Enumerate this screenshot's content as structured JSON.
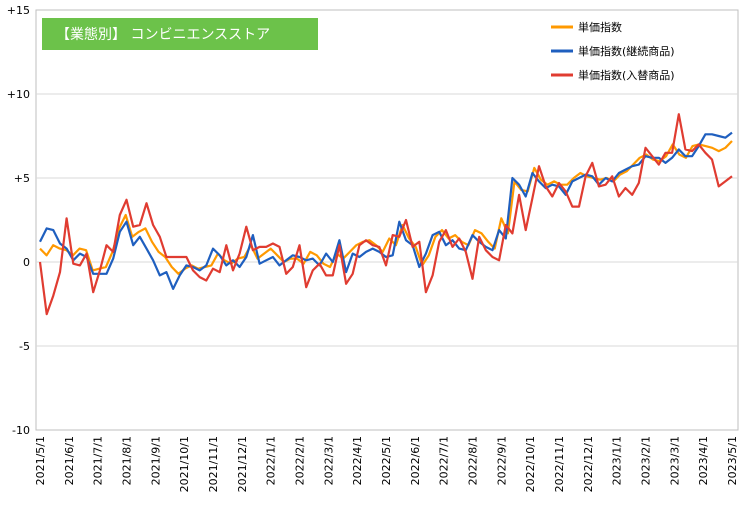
{
  "chart_data": {
    "type": "line",
    "title": "【業態別】 コンビニエンスストア",
    "title_bg_color": "#6cc24a",
    "ylim": [
      -10,
      15
    ],
    "yticks": [
      {
        "value": 15,
        "label": "+15"
      },
      {
        "value": 10,
        "label": "+10"
      },
      {
        "value": 5,
        "label": "+5"
      },
      {
        "value": 0,
        "label": "0"
      },
      {
        "value": -5,
        "label": "-5"
      },
      {
        "value": -10,
        "label": "-10"
      }
    ],
    "x_tick_labels": [
      "2021/5/1",
      "2021/6/1",
      "2021/7/1",
      "2021/8/1",
      "2021/9/1",
      "2021/10/1",
      "2021/11/1",
      "2021/12/1",
      "2022/1/1",
      "2022/2/1",
      "2022/3/1",
      "2022/4/1",
      "2022/5/1",
      "2022/6/1",
      "2022/7/1",
      "2022/8/1",
      "2022/9/1",
      "2022/10/1",
      "2022/11/1",
      "2022/12/1",
      "2023/1/1",
      "2023/2/1",
      "2023/3/1",
      "2023/4/1",
      "2023/5/1"
    ],
    "legend_position": "top-right",
    "series": [
      {
        "name": "単価指数",
        "color": "#ff9900",
        "values": [
          0.8,
          0.4,
          1.0,
          0.8,
          0.7,
          0.4,
          0.8,
          0.7,
          -0.5,
          -0.4,
          -0.3,
          0.6,
          2.0,
          2.8,
          1.5,
          1.8,
          2.0,
          1.2,
          0.6,
          0.3,
          -0.3,
          -0.7,
          -0.4,
          -0.2,
          -0.4,
          -0.3,
          -0.2,
          0.5,
          0.1,
          -0.1,
          0.2,
          0.3,
          1.0,
          0.2,
          0.5,
          0.8,
          0.4,
          0.0,
          0.2,
          0.2,
          -0.1,
          0.6,
          0.4,
          -0.1,
          -0.3,
          0.5,
          0.2,
          0.6,
          1.0,
          1.2,
          1.3,
          1.0,
          0.6,
          1.4,
          1.0,
          2.2,
          1.4,
          0.9,
          -0.2,
          0.4,
          1.5,
          1.9,
          1.4,
          1.6,
          1.2,
          1.0,
          1.9,
          1.7,
          1.2,
          0.8,
          2.6,
          1.7,
          4.8,
          4.3,
          4.2,
          5.6,
          4.9,
          4.6,
          4.8,
          4.6,
          4.6,
          5.0,
          5.3,
          5.1,
          5.0,
          4.9,
          5.0,
          4.8,
          5.2,
          5.4,
          5.8,
          6.2,
          6.4,
          6.1,
          6.0,
          6.3,
          7.0,
          6.4,
          6.2,
          6.9,
          7.0,
          6.9,
          6.8,
          6.6,
          6.8,
          7.2
        ]
      },
      {
        "name": "単価指数(継続商品)",
        "color": "#1f5fbf",
        "values": [
          1.2,
          2.0,
          1.9,
          1.1,
          0.8,
          0.1,
          0.5,
          0.3,
          -0.7,
          -0.7,
          -0.7,
          0.2,
          1.8,
          2.4,
          1.0,
          1.5,
          0.8,
          0.1,
          -0.8,
          -0.6,
          -1.6,
          -0.8,
          -0.2,
          -0.3,
          -0.5,
          -0.2,
          0.8,
          0.4,
          -0.2,
          0.1,
          -0.3,
          0.3,
          1.6,
          -0.1,
          0.1,
          0.3,
          -0.2,
          0.1,
          0.4,
          0.3,
          0.1,
          0.2,
          -0.2,
          0.5,
          0.0,
          1.3,
          -0.6,
          0.5,
          0.3,
          0.6,
          0.8,
          0.6,
          0.3,
          0.4,
          2.4,
          1.3,
          1.0,
          -0.3,
          0.5,
          1.6,
          1.8,
          1.0,
          1.3,
          0.8,
          0.7,
          1.6,
          1.2,
          0.9,
          0.7,
          1.9,
          1.4,
          5.0,
          4.6,
          3.9,
          5.3,
          4.8,
          4.4,
          4.6,
          4.5,
          4.0,
          4.8,
          5.0,
          5.2,
          5.1,
          4.6,
          5.0,
          4.8,
          5.3,
          5.5,
          5.7,
          5.8,
          6.3,
          6.2,
          6.2,
          5.9,
          6.2,
          6.7,
          6.3,
          6.3,
          6.9,
          7.6,
          7.6,
          7.5,
          7.4,
          7.7
        ]
      },
      {
        "name": "単価指数(入替商品)",
        "color": "#e03c31",
        "values": [
          0.0,
          -3.1,
          -2.0,
          -0.6,
          2.6,
          -0.1,
          -0.2,
          0.5,
          -1.8,
          -0.5,
          1.0,
          0.6,
          2.8,
          3.7,
          2.1,
          2.2,
          3.5,
          2.2,
          1.5,
          0.3,
          0.3,
          0.3,
          0.3,
          -0.5,
          -0.9,
          -1.1,
          -0.4,
          -0.6,
          1.0,
          -0.5,
          0.5,
          2.1,
          0.7,
          0.9,
          0.9,
          1.1,
          0.9,
          -0.7,
          -0.3,
          1.0,
          -1.5,
          -0.5,
          -0.1,
          -0.8,
          -0.8,
          1.0,
          -1.3,
          -0.7,
          1.0,
          1.3,
          1.0,
          0.9,
          -0.2,
          1.6,
          1.5,
          2.5,
          0.9,
          1.2,
          -1.8,
          -0.8,
          1.2,
          1.9,
          0.9,
          1.4,
          0.6,
          -1.0,
          1.5,
          0.7,
          0.3,
          0.1,
          2.2,
          1.7,
          4.0,
          1.9,
          3.8,
          5.7,
          4.5,
          3.9,
          4.7,
          4.2,
          3.3,
          3.3,
          5.1,
          5.9,
          4.5,
          4.6,
          5.1,
          3.9,
          4.4,
          4.0,
          4.7,
          6.8,
          6.3,
          5.8,
          6.5,
          6.5,
          8.8,
          6.7,
          6.6,
          7.0,
          6.5,
          6.1,
          4.5,
          4.8,
          5.1
        ]
      }
    ]
  }
}
